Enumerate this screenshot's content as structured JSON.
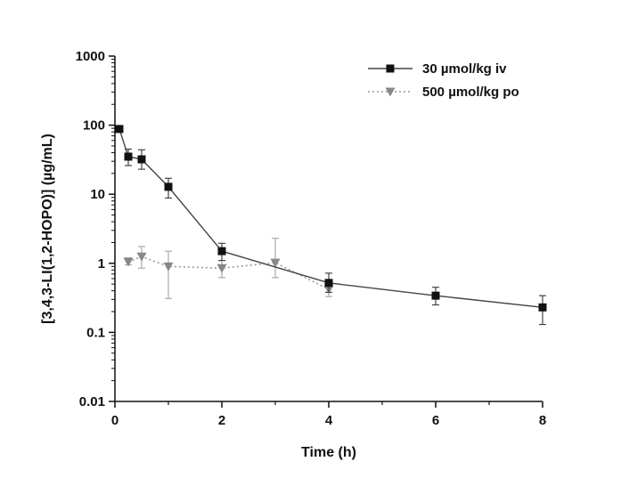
{
  "chart_data": {
    "type": "line",
    "title": "",
    "xlabel": "Time (h)",
    "ylabel": "[3,4,3-LI(1,2-HOPO)] (µg/mL)",
    "xscale": "linear",
    "yscale": "log",
    "xlim": [
      0,
      8
    ],
    "ylim": [
      0.01,
      1000
    ],
    "x_ticks": [
      0,
      2,
      4,
      6,
      8
    ],
    "x_tick_labels": [
      "0",
      "2",
      "4",
      "6",
      "8"
    ],
    "y_ticks": [
      0.01,
      0.1,
      1,
      10,
      100,
      1000
    ],
    "y_tick_labels": [
      "0.01",
      "0.1",
      "1",
      "10",
      "100",
      "1000"
    ],
    "grid": false,
    "legend_position": "top-right",
    "series": [
      {
        "name": "30 µmol/kg iv",
        "color": "#111111",
        "marker": "square",
        "line_style": "solid",
        "x": [
          0.083,
          0.25,
          0.5,
          1,
          2,
          4,
          6,
          8
        ],
        "y": [
          88,
          35,
          32,
          12.8,
          1.5,
          0.52,
          0.34,
          0.23
        ],
        "y_err_low": [
          80,
          26,
          23,
          8.8,
          1.1,
          0.38,
          0.25,
          0.13
        ],
        "y_err_high": [
          97,
          45,
          44,
          17,
          1.95,
          0.72,
          0.45,
          0.34
        ]
      },
      {
        "name": "500 µmol/kg po",
        "color": "#888888",
        "marker": "triangle-down",
        "line_style": "dotted",
        "x": [
          0.25,
          0.5,
          1,
          2,
          3,
          4
        ],
        "y": [
          1.05,
          1.25,
          0.9,
          0.85,
          1.02,
          0.42
        ],
        "y_err_low": [
          0.95,
          0.85,
          0.31,
          0.62,
          0.62,
          0.33
        ],
        "y_err_high": [
          1.2,
          1.75,
          1.5,
          1.1,
          2.3,
          0.55
        ]
      }
    ]
  }
}
